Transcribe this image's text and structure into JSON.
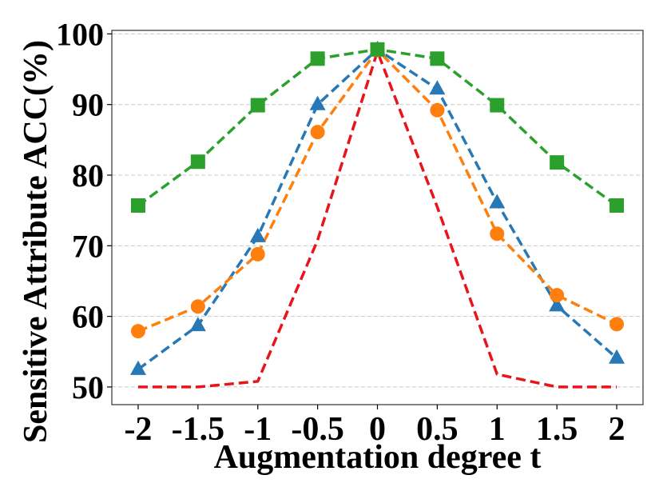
{
  "chart_data": {
    "type": "line",
    "title": "",
    "xlabel": "Augmentation degree t",
    "ylabel": "Sensitive Attribute ACC(%)",
    "x": [
      -2,
      -1.5,
      -1,
      -0.5,
      0,
      0.5,
      1,
      1.5,
      2
    ],
    "x_tick_labels": [
      "-2",
      "-1.5",
      "-1",
      "-0.5",
      "0",
      "0.5",
      "1",
      "1.5",
      "2"
    ],
    "y_ticks": [
      50,
      60,
      70,
      80,
      90,
      100
    ],
    "y_tick_labels": [
      "50",
      "60",
      "70",
      "80",
      "90",
      "100"
    ],
    "xlim": [
      -2.22,
      2.22
    ],
    "ylim": [
      47.5,
      100.5
    ],
    "grid": "horizontal dashed",
    "legend": "none",
    "series": [
      {
        "values": [
          50.0,
          50.0,
          50.8,
          70.8,
          97.5,
          75.5,
          51.8,
          50.0,
          50.0
        ],
        "color": "#e8141c",
        "marker": "none",
        "linestyle": "dashed"
      },
      {
        "values": [
          52.5,
          58.7,
          71.3,
          90.0,
          97.8,
          92.2,
          76.1,
          61.5,
          54.1
        ],
        "color": "#2878b5",
        "marker": "triangle",
        "linestyle": "dashed"
      },
      {
        "values": [
          57.9,
          61.4,
          68.8,
          86.1,
          97.7,
          89.2,
          71.7,
          63.0,
          58.9
        ],
        "color": "#ff7f0e",
        "marker": "circle",
        "linestyle": "dashed"
      },
      {
        "values": [
          75.7,
          81.9,
          89.9,
          96.5,
          97.8,
          96.5,
          89.9,
          81.8,
          75.7
        ],
        "color": "#2ca02c",
        "marker": "square",
        "linestyle": "dashed"
      }
    ]
  }
}
